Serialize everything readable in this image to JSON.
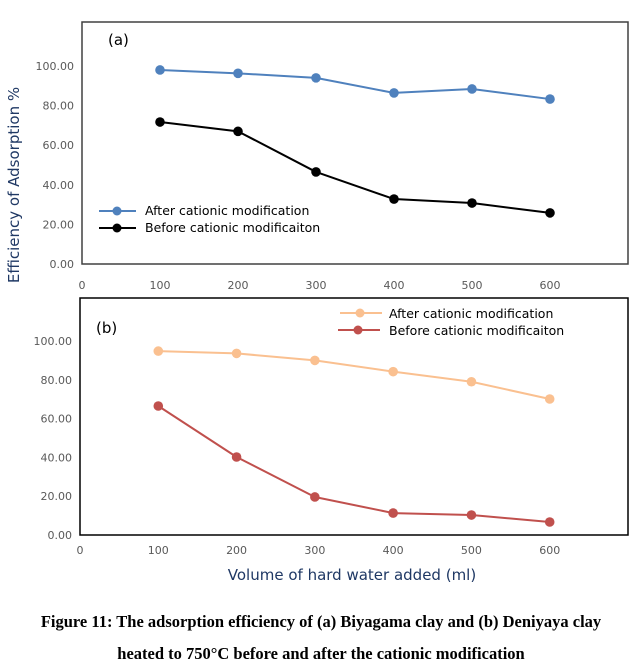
{
  "chart_data": [
    {
      "type": "line",
      "panel_label": "(a)",
      "title": "",
      "xlabel": "",
      "ylabel": "Efficiency of Adsorption %",
      "x": [
        100,
        200,
        300,
        400,
        500,
        600
      ],
      "xlim": [
        0,
        700
      ],
      "ylim": [
        0,
        120
      ],
      "x_ticks": [
        "0",
        "100",
        "200",
        "300",
        "400",
        "500",
        "600"
      ],
      "y_ticks": [
        "0.00",
        "20.00",
        "40.00",
        "60.00",
        "80.00",
        "100.00"
      ],
      "grid": false,
      "legend_position": "lower-left",
      "series": [
        {
          "name": "After cationic modification",
          "color": "#4f81bd",
          "values": [
            98.0,
            96.3,
            94.0,
            86.4,
            88.4,
            83.3
          ]
        },
        {
          "name": "Before cationic modificaiton",
          "color": "#000000",
          "values": [
            71.7,
            67.0,
            46.5,
            32.8,
            30.8,
            25.8
          ]
        }
      ]
    },
    {
      "type": "line",
      "panel_label": "(b)",
      "title": "",
      "xlabel": "Volume of hard water added (ml)",
      "ylabel": "Efficiency of Adsorption %",
      "x": [
        100,
        200,
        300,
        400,
        500,
        600
      ],
      "xlim": [
        0,
        700
      ],
      "ylim": [
        0,
        120
      ],
      "x_ticks": [
        "0",
        "100",
        "200",
        "300",
        "400",
        "500",
        "600"
      ],
      "y_ticks": [
        "0.00",
        "20.00",
        "40.00",
        "60.00",
        "80.00",
        "100.00"
      ],
      "grid": false,
      "legend_position": "top-right",
      "series": [
        {
          "name": "After cationic modification",
          "color": "#fac090",
          "values": [
            94.8,
            93.6,
            90.0,
            84.2,
            79.0,
            70.1
          ]
        },
        {
          "name": "Before cationic modificaiton",
          "color": "#c0504d",
          "values": [
            66.5,
            40.2,
            19.6,
            11.3,
            10.3,
            6.7
          ]
        }
      ]
    }
  ],
  "shared_ylabel": "Efficiency of Adsorption %",
  "caption": {
    "line1": "Figure 11: The adsorption efficiency of (a) Biyagama clay and (b) Deniyaya clay",
    "line2": "heated to 750°C before and after the cationic modification"
  }
}
